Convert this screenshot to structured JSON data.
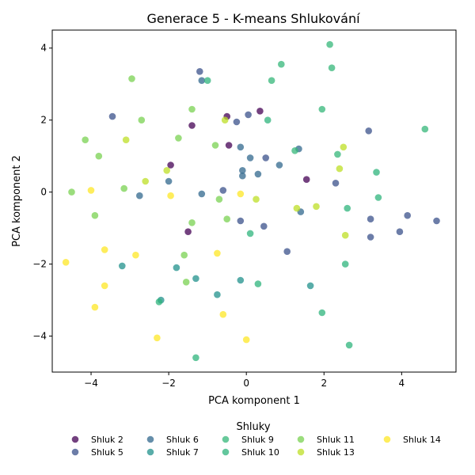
{
  "chart_data": {
    "type": "scatter",
    "title": "Generace 5 - K-means Shlukování",
    "xlabel": "PCA komponent 1",
    "ylabel": "PCA komponent 2",
    "xlim": [
      -5.0,
      5.4
    ],
    "ylim": [
      -5.0,
      4.5
    ],
    "xticks": [
      -4,
      -2,
      0,
      2,
      4
    ],
    "yticks": [
      -4,
      -2,
      0,
      2,
      4
    ],
    "grid": false,
    "legend": {
      "title": "Shluky",
      "placement": "bottom-center"
    },
    "series": [
      {
        "name": "Shluk 2",
        "color": "#440154",
        "x": [
          -0.5,
          0.35,
          -1.4,
          -0.45,
          -1.95,
          1.55,
          -1.5
        ],
        "y": [
          2.1,
          2.25,
          1.85,
          1.3,
          0.75,
          0.35,
          -1.1
        ]
      },
      {
        "name": "Shluk 5",
        "color": "#3b528b",
        "x": [
          -1.2,
          -3.45,
          3.15,
          -0.25,
          0.05,
          0.5,
          2.3,
          -0.6,
          -0.15,
          3.2,
          4.15,
          3.95,
          3.2,
          0.45,
          1.05,
          4.9
        ],
        "y": [
          3.35,
          2.1,
          1.7,
          1.95,
          2.15,
          0.95,
          0.25,
          0.05,
          -0.8,
          -0.75,
          -0.65,
          -1.1,
          -1.25,
          -0.95,
          -1.65,
          -0.8
        ]
      },
      {
        "name": "Shluk 6",
        "color": "#31688e",
        "x": [
          -1.15,
          -0.15,
          1.35,
          0.1,
          -0.1,
          0.3,
          0.85,
          -2.0,
          -1.15,
          1.4,
          -2.75,
          -0.1
        ],
        "y": [
          3.1,
          1.25,
          1.2,
          0.95,
          0.6,
          0.5,
          0.75,
          0.3,
          -0.05,
          -0.55,
          -0.1,
          0.45
        ]
      },
      {
        "name": "Shluk 7",
        "color": "#21918c",
        "x": [
          -3.2,
          -1.8,
          -1.3,
          -2.2,
          -0.75,
          -0.15,
          1.65
        ],
        "y": [
          -2.05,
          -2.1,
          -2.4,
          -3.0,
          -2.85,
          -2.45,
          -2.6
        ]
      },
      {
        "name": "Shluk 9",
        "color": "#35b779",
        "x": [
          2.15,
          0.9,
          2.2,
          0.65,
          1.95,
          2.35,
          4.6,
          1.25
        ],
        "y": [
          4.1,
          3.55,
          3.45,
          3.1,
          2.3,
          1.05,
          1.75,
          1.15
        ]
      },
      {
        "name": "Shluk 10",
        "color": "#2fb47c",
        "x": [
          -1.0,
          0.55,
          3.35,
          2.6,
          3.4,
          0.1,
          2.55,
          0.3,
          -1.3,
          -2.25,
          1.95,
          2.65
        ],
        "y": [
          3.1,
          2.0,
          0.55,
          -0.45,
          -0.15,
          -1.15,
          -2.0,
          -2.55,
          -4.6,
          -3.05,
          -3.35,
          -4.25
        ]
      },
      {
        "name": "Shluk 11",
        "color": "#7ad151",
        "x": [
          -2.95,
          -1.4,
          -2.7,
          -4.15,
          -3.8,
          -1.75,
          -0.8,
          -3.15,
          -4.5,
          -3.9,
          -0.7,
          -0.5,
          -1.4,
          -1.6,
          -1.55
        ],
        "y": [
          3.15,
          2.3,
          2.0,
          1.45,
          1.0,
          1.5,
          1.3,
          0.1,
          0.0,
          -0.65,
          -0.2,
          -0.75,
          -0.85,
          -1.75,
          -2.5
        ]
      },
      {
        "name": "Shluk 13",
        "color": "#bddf26",
        "x": [
          -3.1,
          -0.55,
          -2.6,
          -2.05,
          2.5,
          2.4,
          0.25,
          1.3,
          1.8,
          2.55
        ],
        "y": [
          1.45,
          2.0,
          0.3,
          0.6,
          1.25,
          0.65,
          -0.2,
          -0.45,
          -0.4,
          -1.2
        ]
      },
      {
        "name": "Shluk 14",
        "color": "#fde725",
        "x": [
          -4.0,
          -1.95,
          -0.15,
          -4.65,
          -3.65,
          -2.85,
          -3.65,
          -0.75,
          -3.9,
          -0.6,
          -2.3,
          0.0
        ],
        "y": [
          0.05,
          -0.1,
          -0.05,
          -1.95,
          -1.6,
          -1.75,
          -2.6,
          -1.7,
          -3.2,
          -3.4,
          -4.05,
          -4.1
        ]
      }
    ]
  }
}
